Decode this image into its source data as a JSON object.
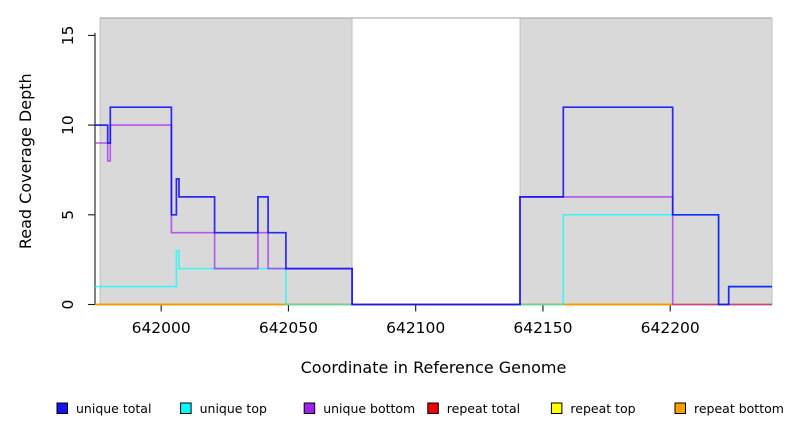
{
  "chart_data": {
    "type": "line",
    "subtype": "step-coverage-plot",
    "title": "",
    "xlabel": "Coordinate in Reference Genome",
    "ylabel": "Read Coverage Depth",
    "x_domain": [
      641974,
      642240
    ],
    "y_domain": [
      0,
      15.97
    ],
    "x_ticks": [
      642000,
      642050,
      642100,
      642150,
      642200
    ],
    "y_ticks": [
      0,
      5,
      10,
      15
    ],
    "grid": false,
    "background_color": "#ffffff",
    "shaded_region_color": "#d9d9d9",
    "shaded_region_border": "#bdbdbd",
    "shaded_regions": [
      {
        "from": 641976,
        "to": 642075
      },
      {
        "from": 642141,
        "to": 642240
      }
    ],
    "series": [
      {
        "name": "repeat total",
        "color": "#e00000",
        "opacity": 1,
        "width": 1.4,
        "steps": [
          [
            641974,
            0
          ]
        ]
      },
      {
        "name": "repeat top",
        "color": "#ffff00",
        "opacity": 1,
        "width": 1.4,
        "steps": [
          [
            641974,
            0
          ]
        ]
      },
      {
        "name": "repeat bottom",
        "color": "#ff9500",
        "opacity": 1,
        "width": 1.6,
        "steps": [
          [
            641974,
            0
          ]
        ]
      },
      {
        "name": "unique top",
        "color": "#00ffff",
        "opacity": 0.7,
        "width": 1.6,
        "steps": [
          [
            641974,
            1
          ],
          [
            642006,
            3
          ],
          [
            642007,
            2
          ],
          [
            642049,
            0
          ],
          [
            642158,
            5
          ],
          [
            642219,
            0
          ],
          [
            642223,
            1
          ]
        ]
      },
      {
        "name": "unique bottom",
        "color": "#a020f0",
        "opacity": 0.7,
        "width": 1.6,
        "steps": [
          [
            641974,
            9
          ],
          [
            641979,
            8
          ],
          [
            641980,
            10
          ],
          [
            642004,
            4
          ],
          [
            642021,
            2
          ],
          [
            642038,
            4
          ],
          [
            642042,
            2
          ],
          [
            642075,
            0
          ],
          [
            642141,
            6
          ],
          [
            642201,
            0
          ]
        ]
      },
      {
        "name": "unique total",
        "color": "#0b0bf5",
        "opacity": 0.85,
        "width": 1.7,
        "steps": [
          [
            641974,
            10
          ],
          [
            641979,
            9
          ],
          [
            641980,
            11
          ],
          [
            642004,
            5
          ],
          [
            642006,
            7
          ],
          [
            642007,
            6
          ],
          [
            642021,
            4
          ],
          [
            642038,
            6
          ],
          [
            642042,
            4
          ],
          [
            642049,
            2
          ],
          [
            642075,
            0
          ],
          [
            642141,
            6
          ],
          [
            642158,
            11
          ],
          [
            642201,
            5
          ],
          [
            642219,
            0
          ],
          [
            642223,
            1
          ]
        ]
      }
    ],
    "legend": {
      "position": "bottom",
      "items": [
        {
          "label": "unique total",
          "color": "#1414f0"
        },
        {
          "label": "unique top",
          "color": "#00ffff"
        },
        {
          "label": "unique bottom",
          "color": "#a020f0"
        },
        {
          "label": "repeat total",
          "color": "#ee0000"
        },
        {
          "label": "repeat top",
          "color": "#ffff00"
        },
        {
          "label": "repeat bottom",
          "color": "#ffa000"
        }
      ]
    },
    "axis_color": "#1a1a1a",
    "text_color": "#000000"
  }
}
